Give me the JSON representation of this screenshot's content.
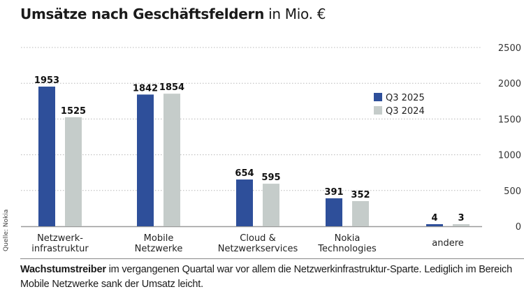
{
  "header": {
    "title_bold": "Umsätze nach Geschäftsfeldern",
    "title_unit": "in Mio. €"
  },
  "source": "Quelle: Nokia",
  "caption": {
    "bold": "Wachstumstreiber",
    "text": " im vergangenen Quartal war vor allem die Netzwerkinfrastruktur-Sparte. Lediglich im Bereich Mobile Netzwerke sank der Umsatz leicht."
  },
  "colors": {
    "q3_2025": "#2e4f9a",
    "q3_2024": "#c5ccca",
    "grid": "#b8b8b8",
    "axis": "#9a9a9a"
  },
  "chart_data": {
    "type": "bar",
    "title": "Umsätze nach Geschäftsfeldern in Mio. €",
    "xlabel": "",
    "ylabel": "",
    "categories": [
      [
        "Netzwerk-",
        "infrastruktur"
      ],
      [
        "Mobile",
        "Netzwerke"
      ],
      [
        "Cloud &",
        "Netzwerkservices"
      ],
      [
        "Nokia",
        "Technologies"
      ],
      [
        "andere"
      ]
    ],
    "series": [
      {
        "name": "Q3 2025",
        "values": [
          1953,
          1842,
          654,
          391,
          4
        ]
      },
      {
        "name": "Q3 2024",
        "values": [
          1525,
          1854,
          595,
          352,
          3
        ]
      }
    ],
    "ylim": [
      0,
      2500
    ],
    "yticks": [
      0,
      500,
      1000,
      1500,
      2000,
      2500
    ],
    "grid": true,
    "yaxis_position": "right",
    "legend_position": "top-right"
  }
}
